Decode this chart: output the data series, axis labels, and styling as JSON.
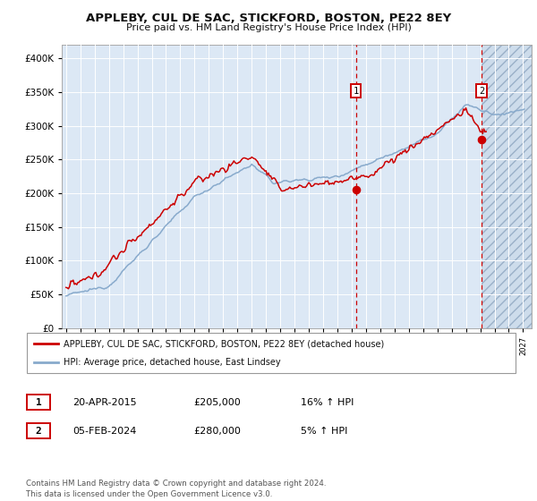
{
  "title": "APPLEBY, CUL DE SAC, STICKFORD, BOSTON, PE22 8EY",
  "subtitle": "Price paid vs. HM Land Registry's House Price Index (HPI)",
  "ylim": [
    0,
    420000
  ],
  "yticks": [
    0,
    50000,
    100000,
    150000,
    200000,
    250000,
    300000,
    350000,
    400000
  ],
  "ytick_labels": [
    "£0",
    "£50K",
    "£100K",
    "£150K",
    "£200K",
    "£250K",
    "£300K",
    "£350K",
    "£400K"
  ],
  "sale1_date": "20-APR-2015",
  "sale1_price": 205000,
  "sale1_hpi": "16% ↑ HPI",
  "sale1_year": 2015.29,
  "sale2_date": "05-FEB-2024",
  "sale2_price": 280000,
  "sale2_hpi": "5% ↑ HPI",
  "sale2_year": 2024.09,
  "legend_line1": "APPLEBY, CUL DE SAC, STICKFORD, BOSTON, PE22 8EY (detached house)",
  "legend_line2": "HPI: Average price, detached house, East Lindsey",
  "footnote": "Contains HM Land Registry data © Crown copyright and database right 2024.\nThis data is licensed under the Open Government Licence v3.0.",
  "house_color": "#cc0000",
  "hpi_color": "#88aacc",
  "bg_chart": "#dce8f5",
  "grid_color": "#ffffff",
  "vline_color": "#cc0000",
  "future_hatch_color": "#c8d8e8"
}
